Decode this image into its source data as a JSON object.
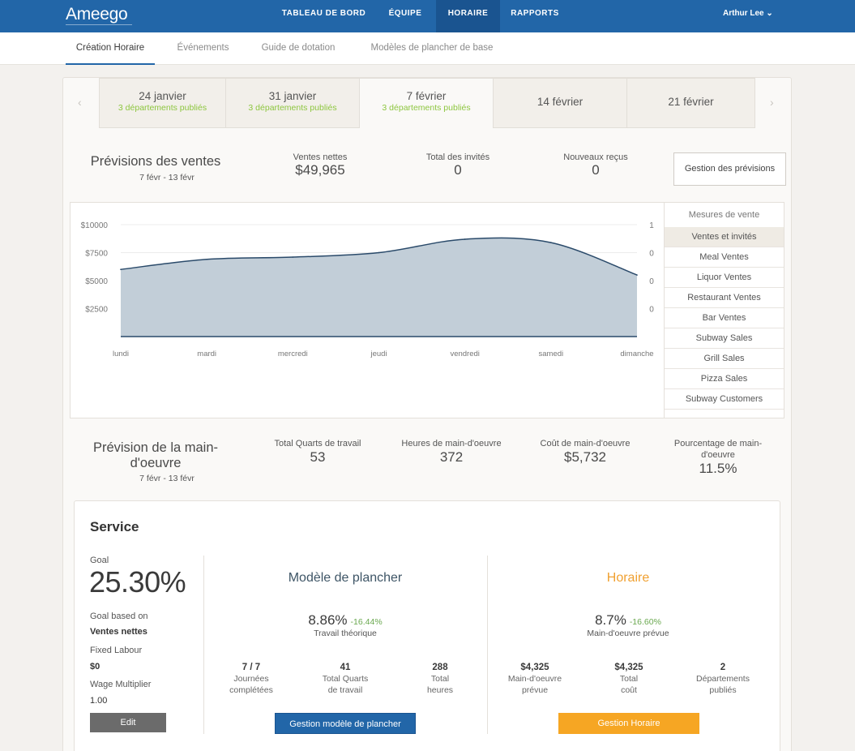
{
  "app": {
    "logo": "Ameego"
  },
  "nav": {
    "items": [
      {
        "label": "TABLEAU DE BORD"
      },
      {
        "label": "ÉQUIPE"
      },
      {
        "label": "HORAIRE"
      },
      {
        "label": "RAPPORTS"
      }
    ],
    "active": "HORAIRE",
    "user": "Arthur Lee ⌄"
  },
  "subnav": {
    "items": [
      {
        "label": "Création Horaire"
      },
      {
        "label": "Événements"
      },
      {
        "label": "Guide de dotation"
      },
      {
        "label": "Modèles de plancher de base"
      }
    ],
    "active": "Création Horaire"
  },
  "weeks": {
    "prev_icon": "‹",
    "next_icon": "›",
    "tabs": [
      {
        "date": "24 janvier",
        "status": "3 départements publiés"
      },
      {
        "date": "31 janvier",
        "status": "3 départements publiés"
      },
      {
        "date": "7 février",
        "status": "3 départements publiés"
      },
      {
        "date": "14 février",
        "status": ""
      },
      {
        "date": "21 février",
        "status": ""
      }
    ],
    "active": "7 février"
  },
  "sales_forecast": {
    "title": "Prévisions des ventes",
    "range": "7 févr - 13 févr",
    "stats": [
      {
        "label": "Ventes nettes",
        "value": "$49,965"
      },
      {
        "label": "Total des invités",
        "value": "0"
      },
      {
        "label": "Nouveaux reçus",
        "value": "0"
      }
    ],
    "manage_button": "Gestion des prévisions"
  },
  "chart_data": {
    "type": "area",
    "x": [
      "lundi",
      "mardi",
      "mercredi",
      "jeudi",
      "vendredi",
      "samedi",
      "dimanche"
    ],
    "series": [
      {
        "values": [
          6000,
          6900,
          7100,
          7500,
          8700,
          8400,
          5500
        ]
      }
    ],
    "ylim": [
      0,
      10000
    ],
    "y_ticks": [
      "$10000",
      "$7500",
      "$5000",
      "$2500"
    ],
    "y2_ticks": [
      "1",
      "0",
      "0",
      "0"
    ],
    "grid": true,
    "fill_color": "#c2ced8",
    "line_color": "#2a4a6a"
  },
  "measures": {
    "title": "Mesures de vente",
    "items": [
      "Ventes et invités",
      "Meal Ventes",
      "Liquor Ventes",
      "Restaurant Ventes",
      "Bar Ventes",
      "Subway Sales",
      "Grill Sales",
      "Pizza Sales",
      "Subway Customers"
    ],
    "selected": "Ventes et invités"
  },
  "labour_forecast": {
    "title": "Prévision de la main-d'oeuvre",
    "range": "7 févr - 13 févr",
    "stats": [
      {
        "label": "Total Quarts de travail",
        "value": "53"
      },
      {
        "label": "Heures de main-d'oeuvre",
        "value": "372"
      },
      {
        "label": "Coût de main-d'oeuvre",
        "value": "$5,732"
      },
      {
        "label": "Pourcentage de main-d'oeuvre",
        "value": "11.5%"
      }
    ]
  },
  "service": {
    "title": "Service",
    "goal_label": "Goal",
    "goal_value": "25.30%",
    "goal_based_label": "Goal based on",
    "goal_based_value": "Ventes nettes",
    "fixed_label": "Fixed Labour",
    "fixed_value": "$0",
    "wage_label": "Wage Multiplier",
    "wage_value": "1.00",
    "edit_button": "Edit",
    "template": {
      "title": "Modèle de plancher",
      "pct": "8.86%",
      "delta": "-16.44%",
      "pct_label": "Travail théorique",
      "stats": [
        {
          "value": "7 / 7",
          "label_1": "Journées",
          "label_2": "complétées"
        },
        {
          "value": "41",
          "label_1": "Total Quarts",
          "label_2": "de travail"
        },
        {
          "value": "288",
          "label_1": "Total",
          "label_2": "heures"
        }
      ],
      "button": "Gestion modèle de plancher"
    },
    "schedule": {
      "title": "Horaire",
      "pct": "8.7%",
      "delta": "-16.60%",
      "pct_label": "Main-d'oeuvre prévue",
      "stats": [
        {
          "value": "$4,325",
          "label_1": "Main-d'oeuvre",
          "label_2": "prévue"
        },
        {
          "value": "$4,325",
          "label_1": "Total",
          "label_2": "coût"
        },
        {
          "value": "2",
          "label_1": "Départements",
          "label_2": "publiés"
        }
      ],
      "button": "Gestion Horaire"
    }
  },
  "colors": {
    "brand": "#2266a8",
    "published": "#8dc63f",
    "delta": "#6aa84f",
    "schedule": "#f6a623"
  }
}
